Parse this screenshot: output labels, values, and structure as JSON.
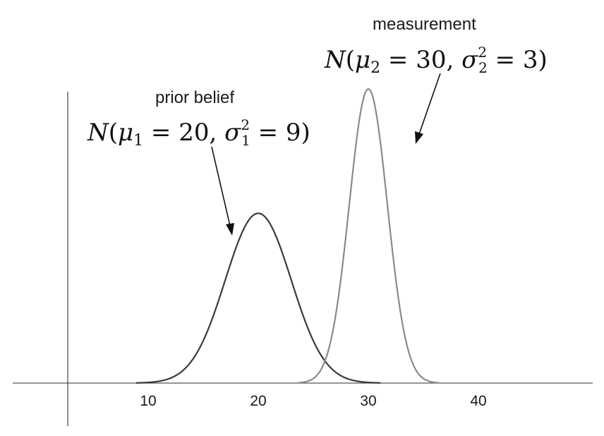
{
  "chart_data": {
    "type": "line",
    "x_ticks": [
      10,
      20,
      30,
      40
    ],
    "series": [
      {
        "mean": 20,
        "variance": 9,
        "color": "#3a3a3a"
      },
      {
        "mean": 30,
        "variance": 3,
        "color": "#8a8a8a"
      }
    ],
    "annotations": [
      {
        "title": "prior belief",
        "formula": "N(μ1 = 20, σ1² = 9)",
        "points_to_mean": 20
      },
      {
        "title": "measurement",
        "formula": "N(μ2 = 30, σ2² = 3)",
        "points_to_mean": 30
      }
    ],
    "grid": false,
    "legend": "none"
  },
  "math": {
    "prior": {
      "N": "N",
      "open": "(",
      "mu": "μ",
      "mu_sub": "1",
      "eq1": " = 20, ",
      "sigma": "σ",
      "sigma_sup": "2",
      "sigma_sub": "1",
      "eq2": " = 9",
      "close": ")"
    },
    "meas": {
      "N": "N",
      "open": "(",
      "mu": "μ",
      "mu_sub": "2",
      "eq1": " = 30, ",
      "sigma": "σ",
      "sigma_sup": "2",
      "sigma_sub": "2",
      "eq2": " = 3",
      "close": ")"
    }
  }
}
